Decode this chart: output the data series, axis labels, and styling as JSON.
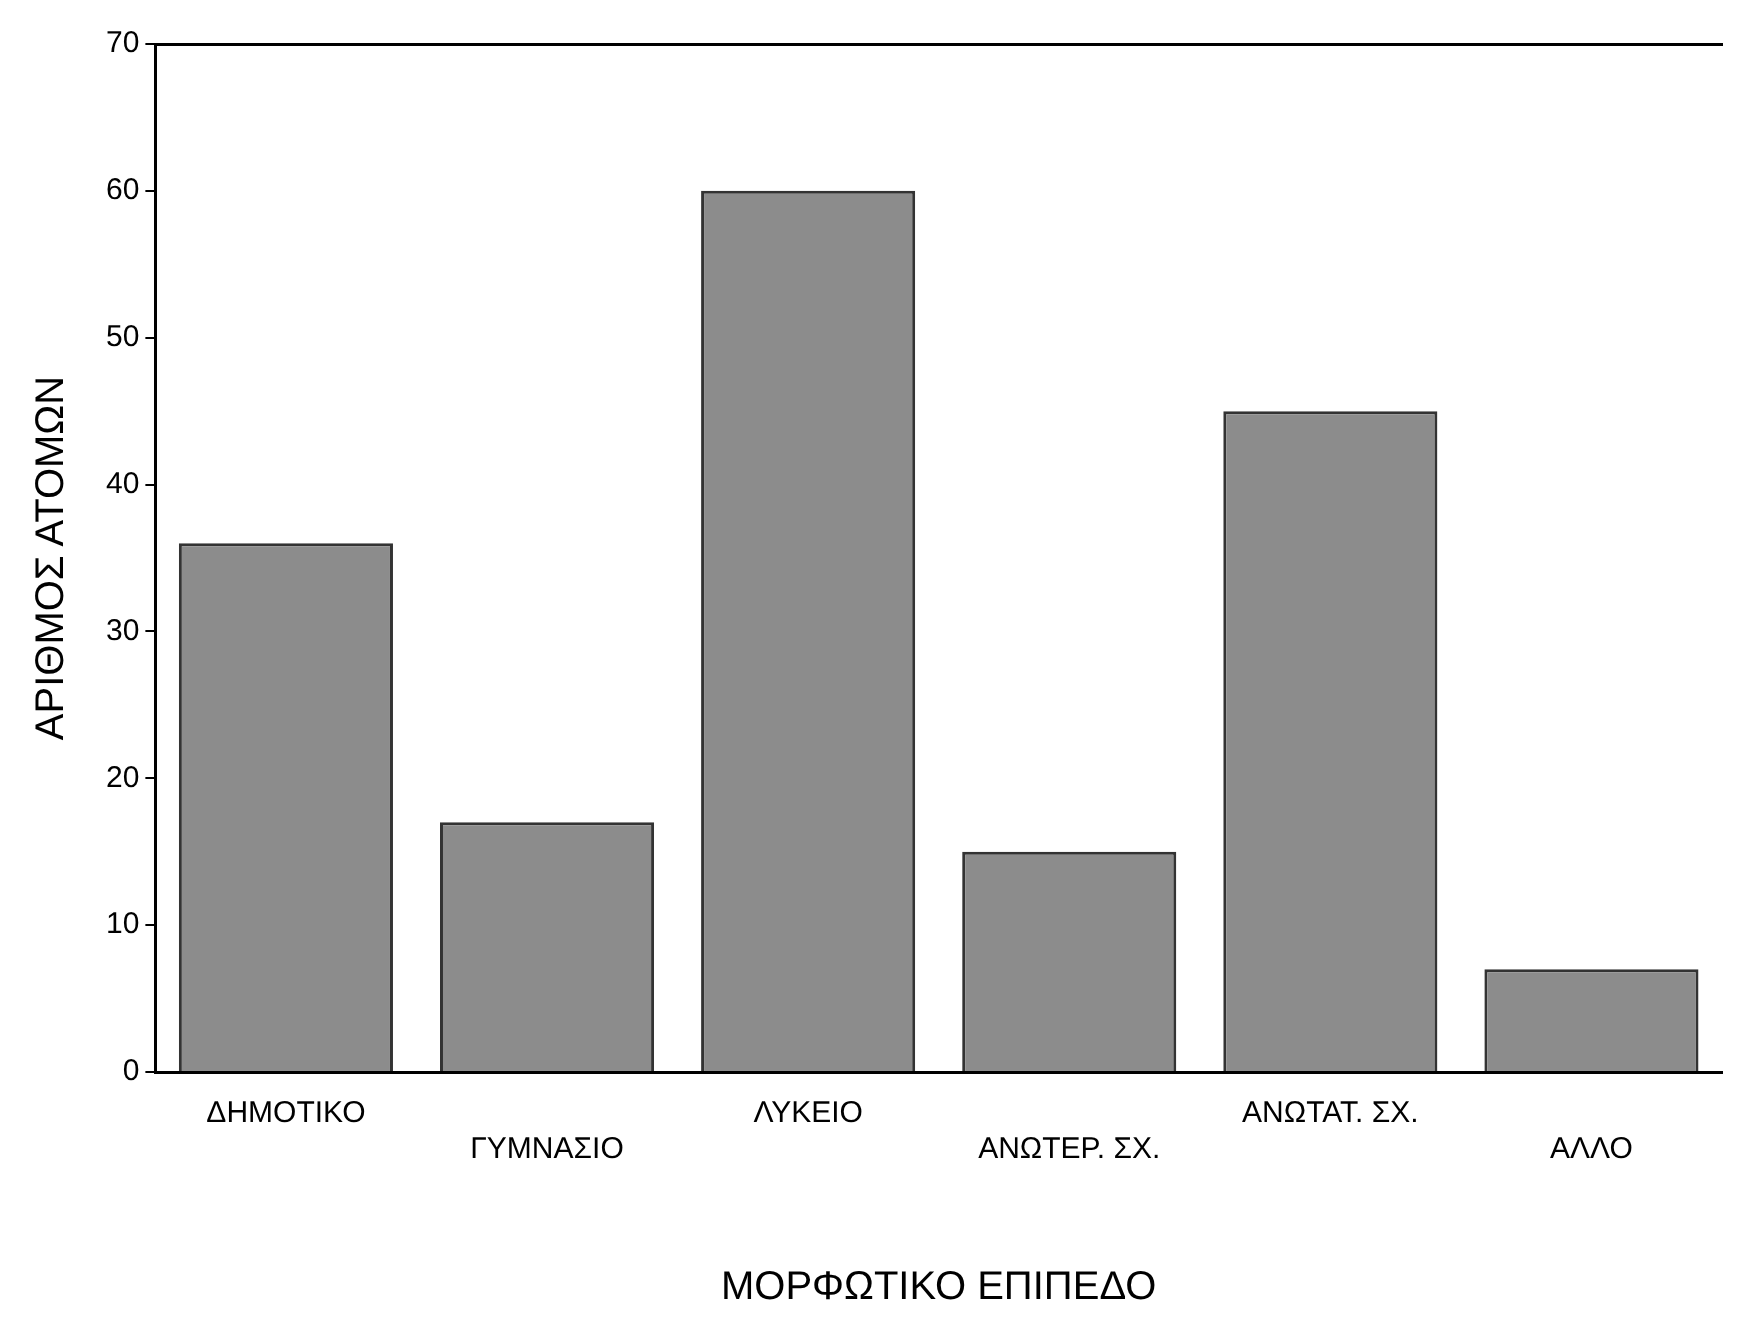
{
  "chart_data": {
    "type": "bar",
    "xlabel": "ΜΟΡΦΩΤΙΚΟ ΕΠΙΠΕΔΟ",
    "ylabel": "ΑΡΙΘΜΟΣ ΑΤΟΜΩΝ",
    "categories": [
      "ΔΗΜΟΤΙΚΟ",
      "ΓΥΜΝΑΣΙΟ",
      "ΛΥΚΕΙΟ",
      "ΑΝΩΤΕΡ. ΣΧ.",
      "ΑΝΩΤΑΤ. ΣΧ.",
      "ΑΛΛΟ"
    ],
    "values": [
      36,
      17,
      60,
      15,
      45,
      7
    ],
    "color": "#8c8c8c",
    "ylim": [
      0,
      70
    ],
    "yticks": [
      0,
      10,
      20,
      30,
      40,
      50,
      60,
      70
    ],
    "grid": false,
    "legend": false
  }
}
